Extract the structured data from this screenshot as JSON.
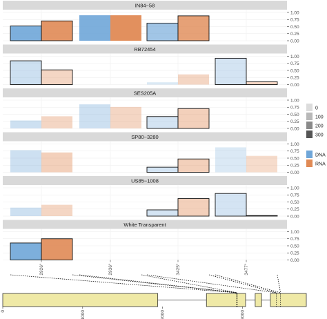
{
  "chart_data": {
    "type": "bar",
    "variants": [
      "2926",
      "2936",
      "3425",
      "3477"
    ],
    "series_names": [
      "DNA",
      "RNA"
    ],
    "colors": {
      "DNA": "#6fa6d8",
      "RNA": "#e08a55"
    },
    "yticks": [
      "0.00",
      "0.25",
      "0.50",
      "0.75",
      "1.00"
    ],
    "ylim": [
      0,
      1.0
    ],
    "panels": [
      {
        "name": "IN84−58",
        "bars": [
          {
            "v": 0,
            "s": "DNA",
            "value": 0.52,
            "alpha": 0.9,
            "outline": true
          },
          {
            "v": 0,
            "s": "RNA",
            "value": 0.7,
            "alpha": 0.9,
            "outline": true
          },
          {
            "v": 1,
            "s": "DNA",
            "value": 0.9,
            "alpha": 0.9,
            "outline": false
          },
          {
            "v": 1,
            "s": "RNA",
            "value": 0.9,
            "alpha": 0.95,
            "outline": false
          },
          {
            "v": 2,
            "s": "DNA",
            "value": 0.62,
            "alpha": 0.65,
            "outline": true
          },
          {
            "v": 2,
            "s": "RNA",
            "value": 0.88,
            "alpha": 0.8,
            "outline": true
          }
        ]
      },
      {
        "name": "RB72454",
        "bars": [
          {
            "v": 0,
            "s": "DNA",
            "value": 0.84,
            "alpha": 0.35,
            "outline": true
          },
          {
            "v": 0,
            "s": "RNA",
            "value": 0.52,
            "alpha": 0.35,
            "outline": true
          },
          {
            "v": 2,
            "s": "DNA",
            "value": 0.08,
            "alpha": 0.25,
            "outline": false
          },
          {
            "v": 2,
            "s": "RNA",
            "value": 0.36,
            "alpha": 0.35,
            "outline": false
          },
          {
            "v": 3,
            "s": "DNA",
            "value": 0.93,
            "alpha": 0.3,
            "outline": true
          },
          {
            "v": 3,
            "s": "RNA",
            "value": 0.1,
            "alpha": 0.35,
            "outline": true
          }
        ]
      },
      {
        "name": "SES205A",
        "bars": [
          {
            "v": 0,
            "s": "DNA",
            "value": 0.28,
            "alpha": 0.35,
            "outline": false
          },
          {
            "v": 0,
            "s": "RNA",
            "value": 0.43,
            "alpha": 0.35,
            "outline": false
          },
          {
            "v": 1,
            "s": "DNA",
            "value": 0.85,
            "alpha": 0.35,
            "outline": false
          },
          {
            "v": 1,
            "s": "RNA",
            "value": 0.76,
            "alpha": 0.35,
            "outline": false
          },
          {
            "v": 2,
            "s": "DNA",
            "value": 0.42,
            "alpha": 0.3,
            "outline": true
          },
          {
            "v": 2,
            "s": "RNA",
            "value": 0.7,
            "alpha": 0.4,
            "outline": true
          }
        ]
      },
      {
        "name": "SP80−3280",
        "bars": [
          {
            "v": 0,
            "s": "DNA",
            "value": 0.78,
            "alpha": 0.35,
            "outline": false
          },
          {
            "v": 0,
            "s": "RNA",
            "value": 0.7,
            "alpha": 0.4,
            "outline": false
          },
          {
            "v": 2,
            "s": "DNA",
            "value": 0.18,
            "alpha": 0.3,
            "outline": true
          },
          {
            "v": 2,
            "s": "RNA",
            "value": 0.47,
            "alpha": 0.4,
            "outline": true
          },
          {
            "v": 3,
            "s": "DNA",
            "value": 0.88,
            "alpha": 0.25,
            "outline": false
          },
          {
            "v": 3,
            "s": "RNA",
            "value": 0.58,
            "alpha": 0.3,
            "outline": false
          }
        ]
      },
      {
        "name": "US85−1008",
        "bars": [
          {
            "v": 0,
            "s": "DNA",
            "value": 0.3,
            "alpha": 0.35,
            "outline": false
          },
          {
            "v": 0,
            "s": "RNA",
            "value": 0.4,
            "alpha": 0.35,
            "outline": false
          },
          {
            "v": 2,
            "s": "DNA",
            "value": 0.22,
            "alpha": 0.3,
            "outline": true
          },
          {
            "v": 2,
            "s": "RNA",
            "value": 0.62,
            "alpha": 0.4,
            "outline": true
          },
          {
            "v": 3,
            "s": "DNA",
            "value": 0.8,
            "alpha": 0.3,
            "outline": true
          },
          {
            "v": 3,
            "s": "RNA",
            "value": 0.02,
            "alpha": 0.35,
            "outline": true
          }
        ]
      },
      {
        "name": "White Transparent",
        "bars": [
          {
            "v": 0,
            "s": "DNA",
            "value": 0.6,
            "alpha": 0.9,
            "outline": true
          },
          {
            "v": 0,
            "s": "RNA",
            "value": 0.75,
            "alpha": 0.9,
            "outline": true
          }
        ]
      }
    ],
    "legend": {
      "count_labels": [
        "0",
        "100",
        "200",
        "300"
      ],
      "series_labels": [
        "DNA",
        "RNA"
      ],
      "position": "right"
    },
    "gene_model": {
      "ticks": [
        "0",
        "1000",
        "2000",
        "3000"
      ],
      "tick_values": [
        0,
        1000,
        2000,
        3000
      ],
      "range": [
        0,
        3800
      ],
      "exons": [
        [
          0,
          1940
        ],
        [
          2550,
          3040
        ],
        [
          3160,
          3240
        ],
        [
          3350,
          3800
        ]
      ],
      "variant_positions": [
        2926,
        2936,
        3425,
        3477
      ]
    }
  }
}
